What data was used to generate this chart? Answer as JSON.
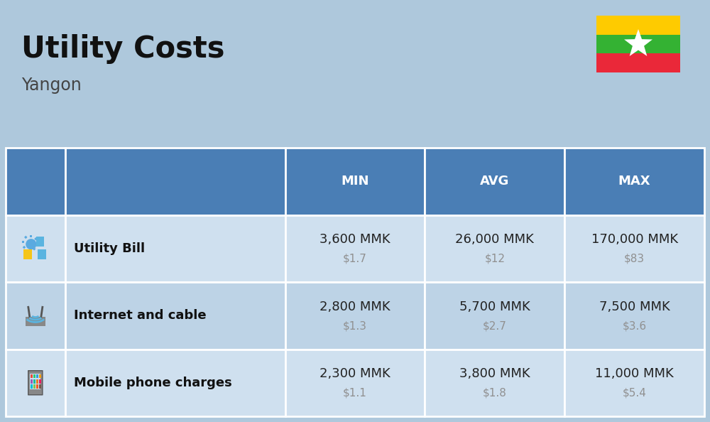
{
  "title": "Utility Costs",
  "subtitle": "Yangon",
  "bg_color": "#aec8dc",
  "header_bg": "#4a7eb5",
  "header_fg": "#ffffff",
  "row_bg_odd": "#cfe0ef",
  "row_bg_even": "#bdd3e6",
  "cell_border": "#ffffff",
  "col_headers": [
    "MIN",
    "AVG",
    "MAX"
  ],
  "rows": [
    {
      "name": "Utility Bill",
      "min_mmk": "3,600 MMK",
      "min_usd": "$1.7",
      "avg_mmk": "26,000 MMK",
      "avg_usd": "$12",
      "max_mmk": "170,000 MMK",
      "max_usd": "$83"
    },
    {
      "name": "Internet and cable",
      "min_mmk": "2,800 MMK",
      "min_usd": "$1.3",
      "avg_mmk": "5,700 MMK",
      "avg_usd": "$2.7",
      "max_mmk": "7,500 MMK",
      "max_usd": "$3.6"
    },
    {
      "name": "Mobile phone charges",
      "min_mmk": "2,300 MMK",
      "min_usd": "$1.1",
      "avg_mmk": "3,800 MMK",
      "avg_usd": "$1.8",
      "max_mmk": "11,000 MMK",
      "max_usd": "$5.4"
    }
  ],
  "title_fs": 30,
  "subtitle_fs": 17,
  "header_fs": 13,
  "name_fs": 13,
  "val_fs": 13,
  "usd_fs": 11,
  "usd_color": "#909090",
  "val_color": "#222222",
  "name_color": "#111111",
  "flag_top_color": "#FECB00",
  "flag_mid_color": "#34B233",
  "flag_bot_color": "#EA2839"
}
